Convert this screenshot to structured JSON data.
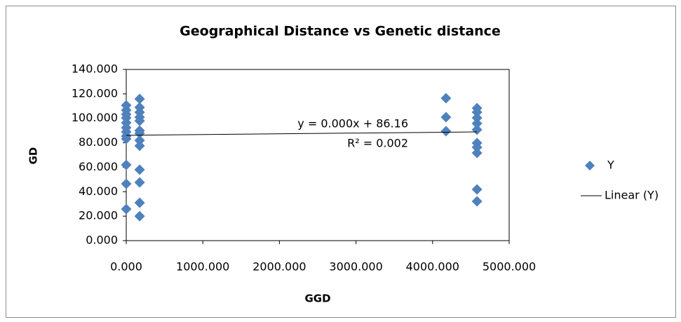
{
  "chart_data": {
    "type": "scatter",
    "title": "Geographical Distance vs Genetic distance",
    "x_label": "GGD",
    "y_label": "GD",
    "xlim": [
      0,
      5000
    ],
    "ylim": [
      0,
      140
    ],
    "xticks": [
      {
        "value": 0,
        "label": "0.000"
      },
      {
        "value": 1000,
        "label": "1000.000"
      },
      {
        "value": 2000,
        "label": "2000.000"
      },
      {
        "value": 3000,
        "label": "3000.000"
      },
      {
        "value": 4000,
        "label": "4000.000"
      },
      {
        "value": 5000,
        "label": "5000.000"
      }
    ],
    "yticks": [
      {
        "value": 0,
        "label": "0.000"
      },
      {
        "value": 20,
        "label": "20.000"
      },
      {
        "value": 40,
        "label": "40.000"
      },
      {
        "value": 60,
        "label": "60.000"
      },
      {
        "value": 80,
        "label": "80.000"
      },
      {
        "value": 100,
        "label": "100.000"
      },
      {
        "value": 120,
        "label": "120.000"
      },
      {
        "value": 140,
        "label": "140.000"
      }
    ],
    "grid": false,
    "legend": "right",
    "series": [
      {
        "name": "Y",
        "color": "#4f81bd",
        "x": [
          0,
          0,
          0,
          0,
          0,
          0,
          0,
          0,
          0,
          0,
          0,
          0,
          175,
          175,
          175,
          175,
          175,
          175,
          175,
          175,
          175,
          175,
          175,
          175,
          175,
          4175,
          4175,
          4175,
          4580,
          4580,
          4580,
          4580,
          4580,
          4580,
          4580,
          4580,
          4580,
          4580
        ],
        "values": [
          110.7,
          106.7,
          103.3,
          100.4,
          96.4,
          92.4,
          88.9,
          85.5,
          83.2,
          62,
          46.5,
          25.8,
          115.9,
          109,
          105,
          101,
          98,
          90,
          87.8,
          82,
          77.5,
          58,
          47.6,
          31,
          20,
          116.5,
          101,
          89.5,
          108.4,
          105,
          100.4,
          95.8,
          90.7,
          79.8,
          76.3,
          71.7,
          41.9,
          32.1
        ]
      }
    ],
    "trendline": {
      "name": "Linear (Y)",
      "color": "#000000",
      "slope": 0.0006,
      "intercept": 86.16,
      "equation": "y = 0.000x + 86.16",
      "r_squared": "R² = 0.002"
    }
  }
}
